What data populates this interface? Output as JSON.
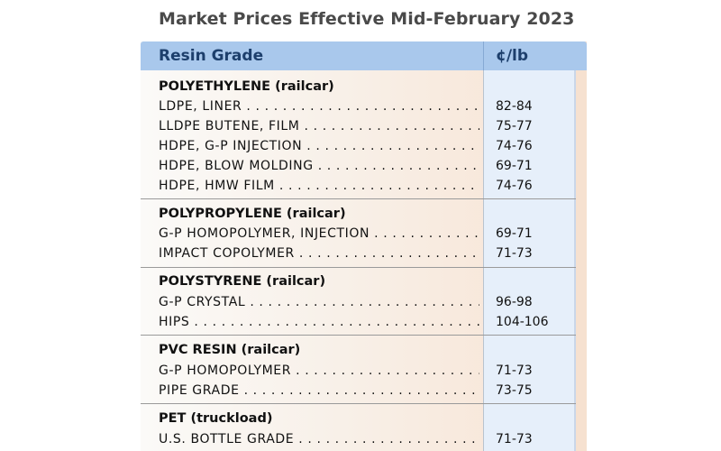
{
  "title": "Market Prices Effective Mid-February 2023",
  "header": {
    "grade": "Resin Grade",
    "price": "¢/lb"
  },
  "sections": [
    {
      "title": "POLYETHYLENE (railcar)",
      "rows": [
        {
          "grade": "LDPE, LINER",
          "price": "82-84"
        },
        {
          "grade": "LLDPE BUTENE, FILM",
          "price": "75-77"
        },
        {
          "grade": "HDPE, G-P INJECTION",
          "price": "74-76"
        },
        {
          "grade": "HDPE, BLOW MOLDING",
          "price": "69-71"
        },
        {
          "grade": "HDPE, HMW FILM",
          "price": "74-76"
        }
      ]
    },
    {
      "title": "POLYPROPYLENE (railcar)",
      "rows": [
        {
          "grade": "G-P HOMOPOLYMER, INJECTION",
          "price": "69-71"
        },
        {
          "grade": "IMPACT COPOLYMER",
          "price": "71-73"
        }
      ]
    },
    {
      "title": "POLYSTYRENE (railcar)",
      "rows": [
        {
          "grade": "G-P CRYSTAL",
          "price": "96-98"
        },
        {
          "grade": "HIPS",
          "price": "104-106"
        }
      ]
    },
    {
      "title": "PVC RESIN (railcar)",
      "rows": [
        {
          "grade": "G-P HOMOPOLYMER",
          "price": "71-73"
        },
        {
          "grade": "PIPE GRADE",
          "price": "73-75"
        }
      ]
    },
    {
      "title": "PET (truckload)",
      "rows": [
        {
          "grade": "U.S. BOTTLE GRADE",
          "price": "71-73"
        }
      ]
    }
  ]
}
